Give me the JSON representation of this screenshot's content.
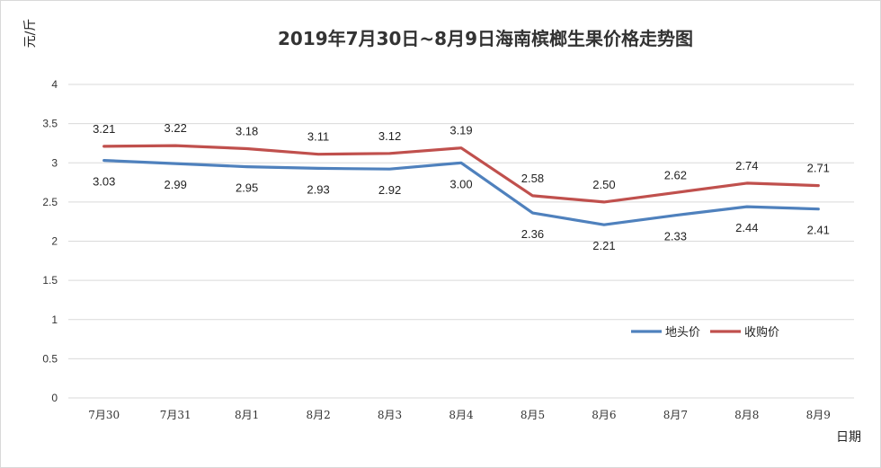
{
  "chart_data": {
    "type": "line",
    "title": "2019年7月30日~8月9日海南槟榔生果价格走势图",
    "ylabel": "元/斤",
    "xlabel": "日期",
    "ylim": [
      0,
      4
    ],
    "yticks": [
      0,
      0.5,
      1,
      1.5,
      2,
      2.5,
      3,
      3.5,
      4
    ],
    "ytick_labels": [
      "0",
      "0.5",
      "1",
      "1.5",
      "2",
      "2.5",
      "3",
      "3.5",
      "4"
    ],
    "grid": true,
    "legend_position": "right",
    "categories": [
      "7月30",
      "7月31",
      "8月1",
      "8月2",
      "8月3",
      "8月4",
      "8月5",
      "8月6",
      "8月7",
      "8月8",
      "8月9"
    ],
    "series": [
      {
        "name": "地头价",
        "color": "#4F81BD",
        "values": [
          3.03,
          2.99,
          2.95,
          2.93,
          2.92,
          3.0,
          2.36,
          2.21,
          2.33,
          2.44,
          2.41
        ],
        "labels": [
          "3.03",
          "2.99",
          "2.95",
          "2.93",
          "2.92",
          "3.00",
          "2.36",
          "2.21",
          "2.33",
          "2.44",
          "2.41"
        ]
      },
      {
        "name": "收购价",
        "color": "#C0504D",
        "values": [
          3.21,
          3.22,
          3.18,
          3.11,
          3.12,
          3.19,
          2.58,
          2.5,
          2.62,
          2.74,
          2.71
        ],
        "labels": [
          "3.21",
          "3.22",
          "3.18",
          "3.11",
          "3.12",
          "3.19",
          "2.58",
          "2.50",
          "2.62",
          "2.74",
          "2.71"
        ]
      }
    ]
  },
  "colors": {
    "grid": "#D9D9D9",
    "frame": "#D9D9D9"
  }
}
